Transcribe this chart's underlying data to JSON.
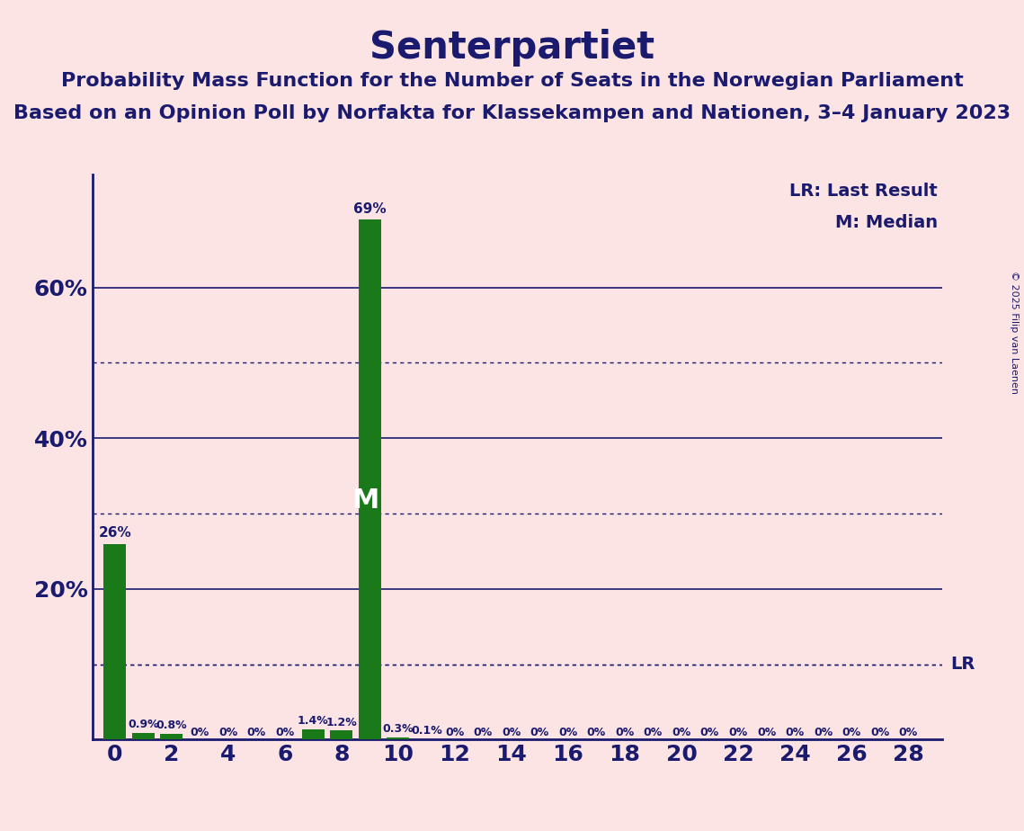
{
  "title": "Senterpartiet",
  "subtitle1": "Probability Mass Function for the Number of Seats in the Norwegian Parliament",
  "subtitle2": "Based on an Opinion Poll by Norfakta for Klassekampen and Nationen, 3–4 January 2023",
  "copyright": "© 2025 Filip van Laenen",
  "background_color": "#fce4e4",
  "bar_color": "#1a7a1a",
  "axis_color": "#1a1a6e",
  "text_color": "#1a1a6e",
  "seats": [
    0,
    1,
    2,
    3,
    4,
    5,
    6,
    7,
    8,
    9,
    10,
    11,
    12,
    13,
    14,
    15,
    16,
    17,
    18,
    19,
    20,
    21,
    22,
    23,
    24,
    25,
    26,
    27,
    28
  ],
  "probabilities": [
    26.0,
    0.9,
    0.8,
    0.0,
    0.0,
    0.0,
    0.0,
    1.4,
    1.2,
    69.0,
    0.3,
    0.1,
    0.0,
    0.0,
    0.0,
    0.0,
    0.0,
    0.0,
    0.0,
    0.0,
    0.0,
    0.0,
    0.0,
    0.0,
    0.0,
    0.0,
    0.0,
    0.0,
    0.0
  ],
  "bar_labels": [
    "26%",
    "0.9%",
    "0.8%",
    "0%",
    "0%",
    "0%",
    "0%",
    "1.4%",
    "1.2%",
    "69%",
    "0.3%",
    "0.1%",
    "0%",
    "0%",
    "0%",
    "0%",
    "0%",
    "0%",
    "0%",
    "0%",
    "0%",
    "0%",
    "0%",
    "0%",
    "0%",
    "0%",
    "0%",
    "0%",
    "0%"
  ],
  "ylim": [
    0,
    75
  ],
  "yticks": [
    0,
    20,
    40,
    60
  ],
  "ytick_labels": [
    "",
    "20%",
    "40%",
    "60%"
  ],
  "xticks": [
    0,
    2,
    4,
    6,
    8,
    10,
    12,
    14,
    16,
    18,
    20,
    22,
    24,
    26,
    28
  ],
  "median_seat": 9,
  "median_label": "M",
  "lr_level": 10.0,
  "lr_label": "LR",
  "legend_lr": "LR: Last Result",
  "legend_m": "M: Median",
  "solid_grid_levels": [
    20,
    40,
    60
  ],
  "dotted_grid_levels": [
    10,
    30,
    50
  ],
  "title_fontsize": 30,
  "subtitle_fontsize": 16,
  "label_fontsize": 11
}
